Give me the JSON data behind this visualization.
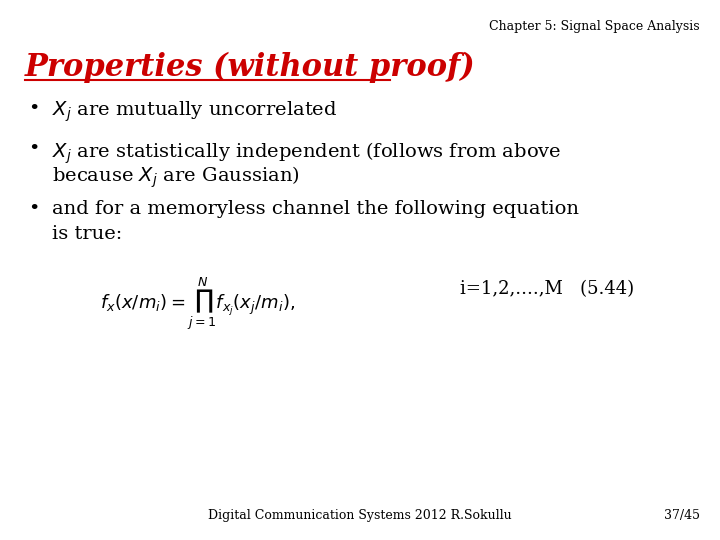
{
  "background_color": "#ffffff",
  "header_text": "Chapter 5: Signal Space Analysis",
  "header_fontsize": 9,
  "header_color": "#000000",
  "title_text": "Properties (without proof)",
  "title_color": "#cc0000",
  "title_fontsize": 22,
  "bullet1_part1": "X",
  "bullet1_sub": "j",
  "bullet1_part2": " are mutually uncorrelated",
  "bullet2_line1_p1": "X",
  "bullet2_line1_sub": "j",
  "bullet2_line1_p2": " are statistically independent (follows from above",
  "bullet2_line2": "because X",
  "bullet2_line2_sub": "j",
  "bullet2_line2_p2": " are Gaussian)",
  "bullet3_line1": "and for a memoryless channel the following equation",
  "bullet3_line2": "is true:",
  "equation": "$f_x(x/m_i) = \\prod_{j=1}^{N} f_{x_j}(x_j / m_i),$",
  "eq_label": "i=1,2,....,M   (5.44)",
  "footer_text": "Digital Communication Systems 2012 R.Sokullu",
  "page_num": "37/45",
  "bullet_fontsize": 14,
  "eq_fontsize": 13,
  "footer_fontsize": 9
}
